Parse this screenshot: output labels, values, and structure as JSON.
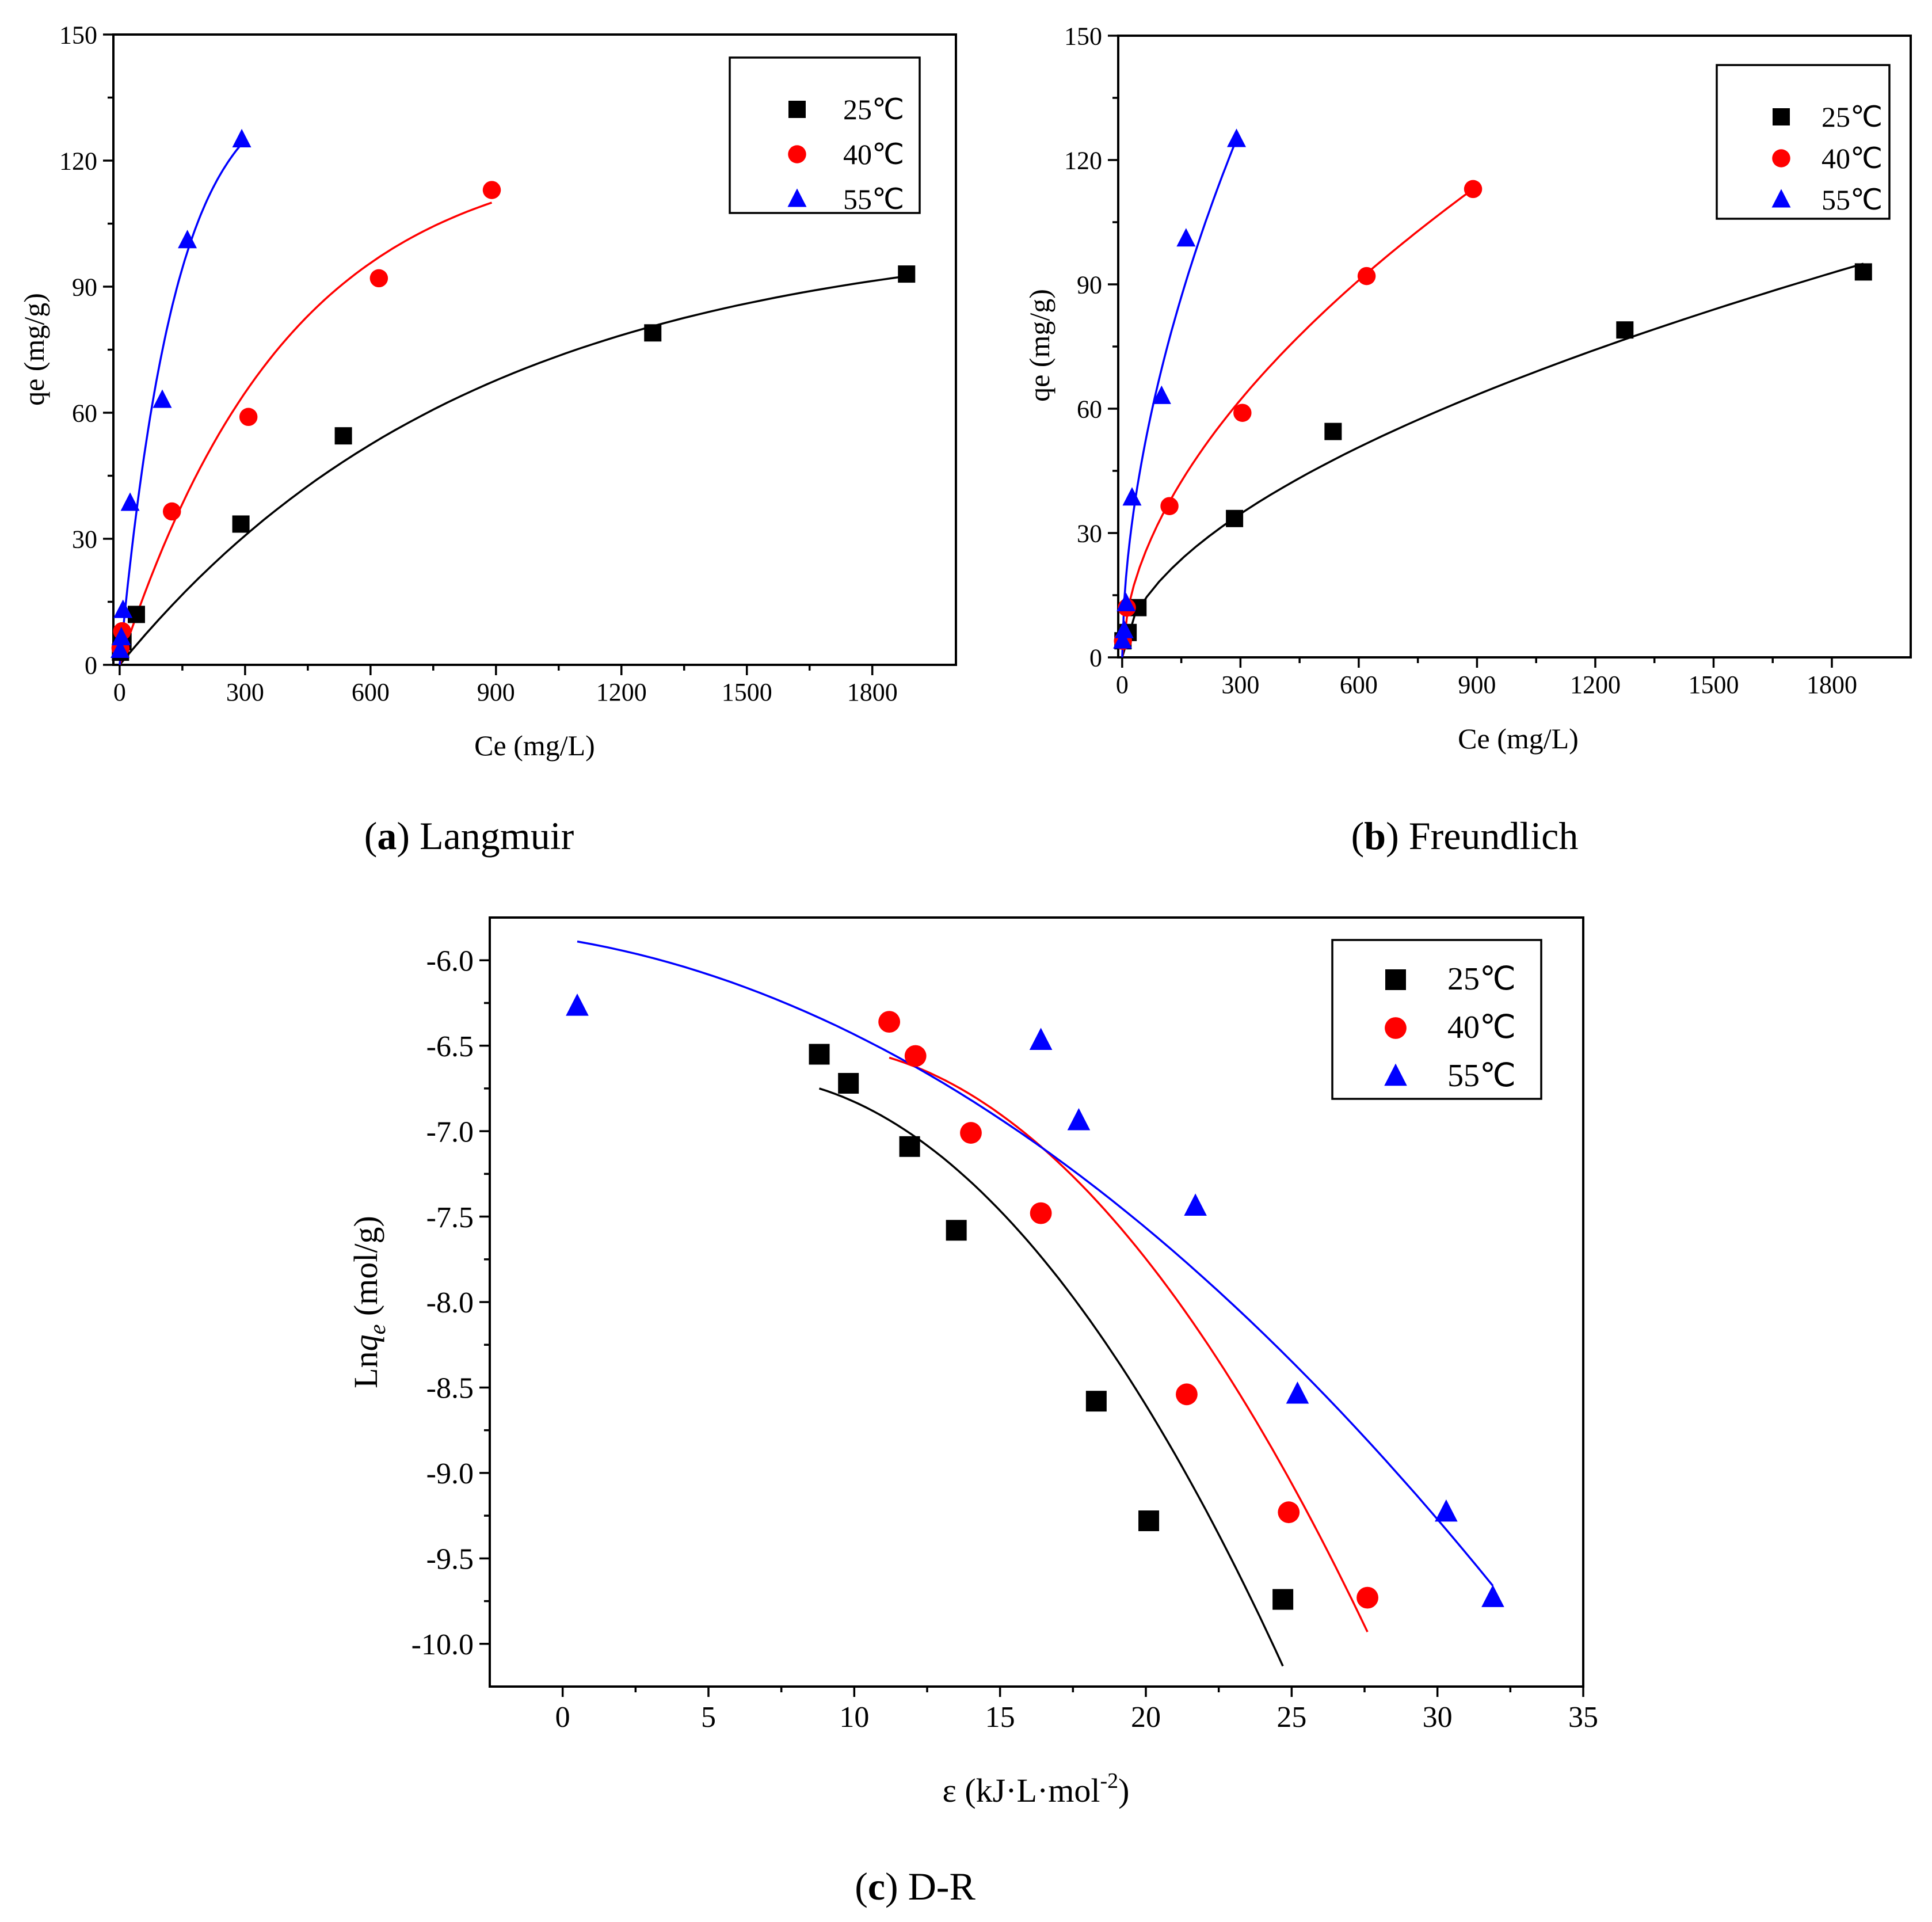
{
  "chart_data": [
    {
      "id": "a",
      "type": "scatter",
      "caption_letter": "a",
      "caption_text": "Langmuir",
      "xlabel": "Ce (mg/L)",
      "ylabel": "qe (mg/g)",
      "xlim": [
        -15,
        2000
      ],
      "ylim": [
        0,
        150
      ],
      "xticks": [
        "0",
        "300",
        "600",
        "900",
        "1200",
        "1500",
        "1800"
      ],
      "yticks": [
        "0",
        "30",
        "60",
        "90",
        "120",
        "150"
      ],
      "legend": "top-right",
      "series": [
        {
          "name": "25℃",
          "color": "#000000",
          "marker": "square",
          "x": [
            2,
            8,
            40,
            290,
            535,
            1275,
            1882
          ],
          "y": [
            3,
            5.5,
            12,
            33.5,
            54.5,
            79,
            93
          ],
          "fit_x": [
            0,
            1882
          ],
          "fit_y": [
            0,
            92.5
          ]
        },
        {
          "name": "40℃",
          "color": "#ff0000",
          "marker": "circle",
          "x": [
            2,
            6,
            125,
            308,
            620,
            890
          ],
          "y": [
            4,
            8,
            36.5,
            59,
            92,
            113
          ],
          "fit_x": [
            0,
            890
          ],
          "fit_y": [
            0,
            110
          ]
        },
        {
          "name": "55℃",
          "color": "#0000ff",
          "marker": "triangle",
          "x": [
            1,
            4,
            8,
            25,
            102,
            162,
            292
          ],
          "y": [
            3.5,
            6.5,
            13,
            38.5,
            63,
            101,
            125
          ],
          "fit_x": [
            0,
            292
          ],
          "fit_y": [
            0,
            124
          ]
        }
      ]
    },
    {
      "id": "b",
      "type": "scatter",
      "caption_letter": "b",
      "caption_text": "Freundlich",
      "xlabel": "Ce (mg/L)",
      "ylabel": "qe (mg/g)",
      "xlim": [
        -10,
        2000
      ],
      "ylim": [
        0,
        150
      ],
      "xticks": [
        "0",
        "300",
        "600",
        "900",
        "1200",
        "1500",
        "1800"
      ],
      "yticks": [
        "0",
        "30",
        "60",
        "90",
        "120",
        "150"
      ],
      "legend": "top-right",
      "series": [
        {
          "name": "25℃",
          "color": "#000000",
          "marker": "square",
          "x": [
            2,
            15,
            40,
            285,
            535,
            1275,
            1880
          ],
          "y": [
            4,
            6,
            12,
            33.5,
            54.5,
            79,
            93
          ],
          "fit_x": [
            0,
            1880
          ],
          "fit_y": [
            0,
            95
          ]
        },
        {
          "name": "40℃",
          "color": "#ff0000",
          "marker": "circle",
          "x": [
            2,
            12,
            120,
            305,
            620,
            890
          ],
          "y": [
            4,
            12,
            36.5,
            59,
            92,
            113
          ],
          "fit_x": [
            0,
            890
          ],
          "fit_y": [
            0,
            113
          ]
        },
        {
          "name": "55℃",
          "color": "#0000ff",
          "marker": "triangle",
          "x": [
            1,
            5,
            10,
            25,
            100,
            162,
            290
          ],
          "y": [
            4,
            6.5,
            13,
            38.5,
            63,
            101,
            125
          ],
          "fit_x": [
            0,
            290
          ],
          "fit_y": [
            0,
            125
          ]
        }
      ]
    },
    {
      "id": "c",
      "type": "scatter",
      "caption_letter": "c",
      "caption_text": "D-R",
      "xlabel_main": "ε (kJ·L·mol",
      "xlabel_sup": "-2",
      "xlabel_end": ")",
      "ylabel_prefix": "Ln",
      "ylabel_q": "q",
      "ylabel_sub": "e",
      "ylabel_suffix": " (mol/g)",
      "xlim": [
        -2.5,
        35
      ],
      "ylim": [
        -10.25,
        -5.75
      ],
      "xticks": [
        "0",
        "5",
        "10",
        "15",
        "20",
        "25",
        "30",
        "35"
      ],
      "yticks": [
        "-6.0",
        "-6.5",
        "-7.0",
        "-7.5",
        "-8.0",
        "-8.5",
        "-9.0",
        "-9.5",
        "-10.0"
      ],
      "legend": "top-right",
      "series": [
        {
          "name": "25℃",
          "color": "#000000",
          "marker": "square",
          "x": [
            8.8,
            9.8,
            11.9,
            13.5,
            18.3,
            20.1,
            24.7
          ],
          "y": [
            -6.55,
            -6.72,
            -7.09,
            -7.58,
            -8.58,
            -9.28,
            -9.74
          ],
          "fit_x": [
            8.8,
            24.7
          ],
          "fit_y": [
            -6.75,
            -10.13
          ]
        },
        {
          "name": "40℃",
          "color": "#ff0000",
          "marker": "circle",
          "x": [
            11.2,
            12.1,
            14.0,
            16.4,
            21.4,
            24.9,
            27.6
          ],
          "y": [
            -6.36,
            -6.56,
            -7.01,
            -7.48,
            -8.54,
            -9.23,
            -9.73
          ],
          "fit_x": [
            11.2,
            27.6
          ],
          "fit_y": [
            -6.57,
            -9.93
          ]
        },
        {
          "name": "55℃",
          "color": "#0000ff",
          "marker": "triangle",
          "x": [
            0.5,
            16.4,
            17.7,
            21.7,
            25.2,
            30.3,
            31.9
          ],
          "y": [
            -6.27,
            -6.47,
            -6.94,
            -7.44,
            -8.54,
            -9.23,
            -9.73
          ],
          "fit_x": [
            0.5,
            31.9
          ],
          "fit_y": [
            -5.89,
            -9.66
          ]
        }
      ]
    }
  ]
}
